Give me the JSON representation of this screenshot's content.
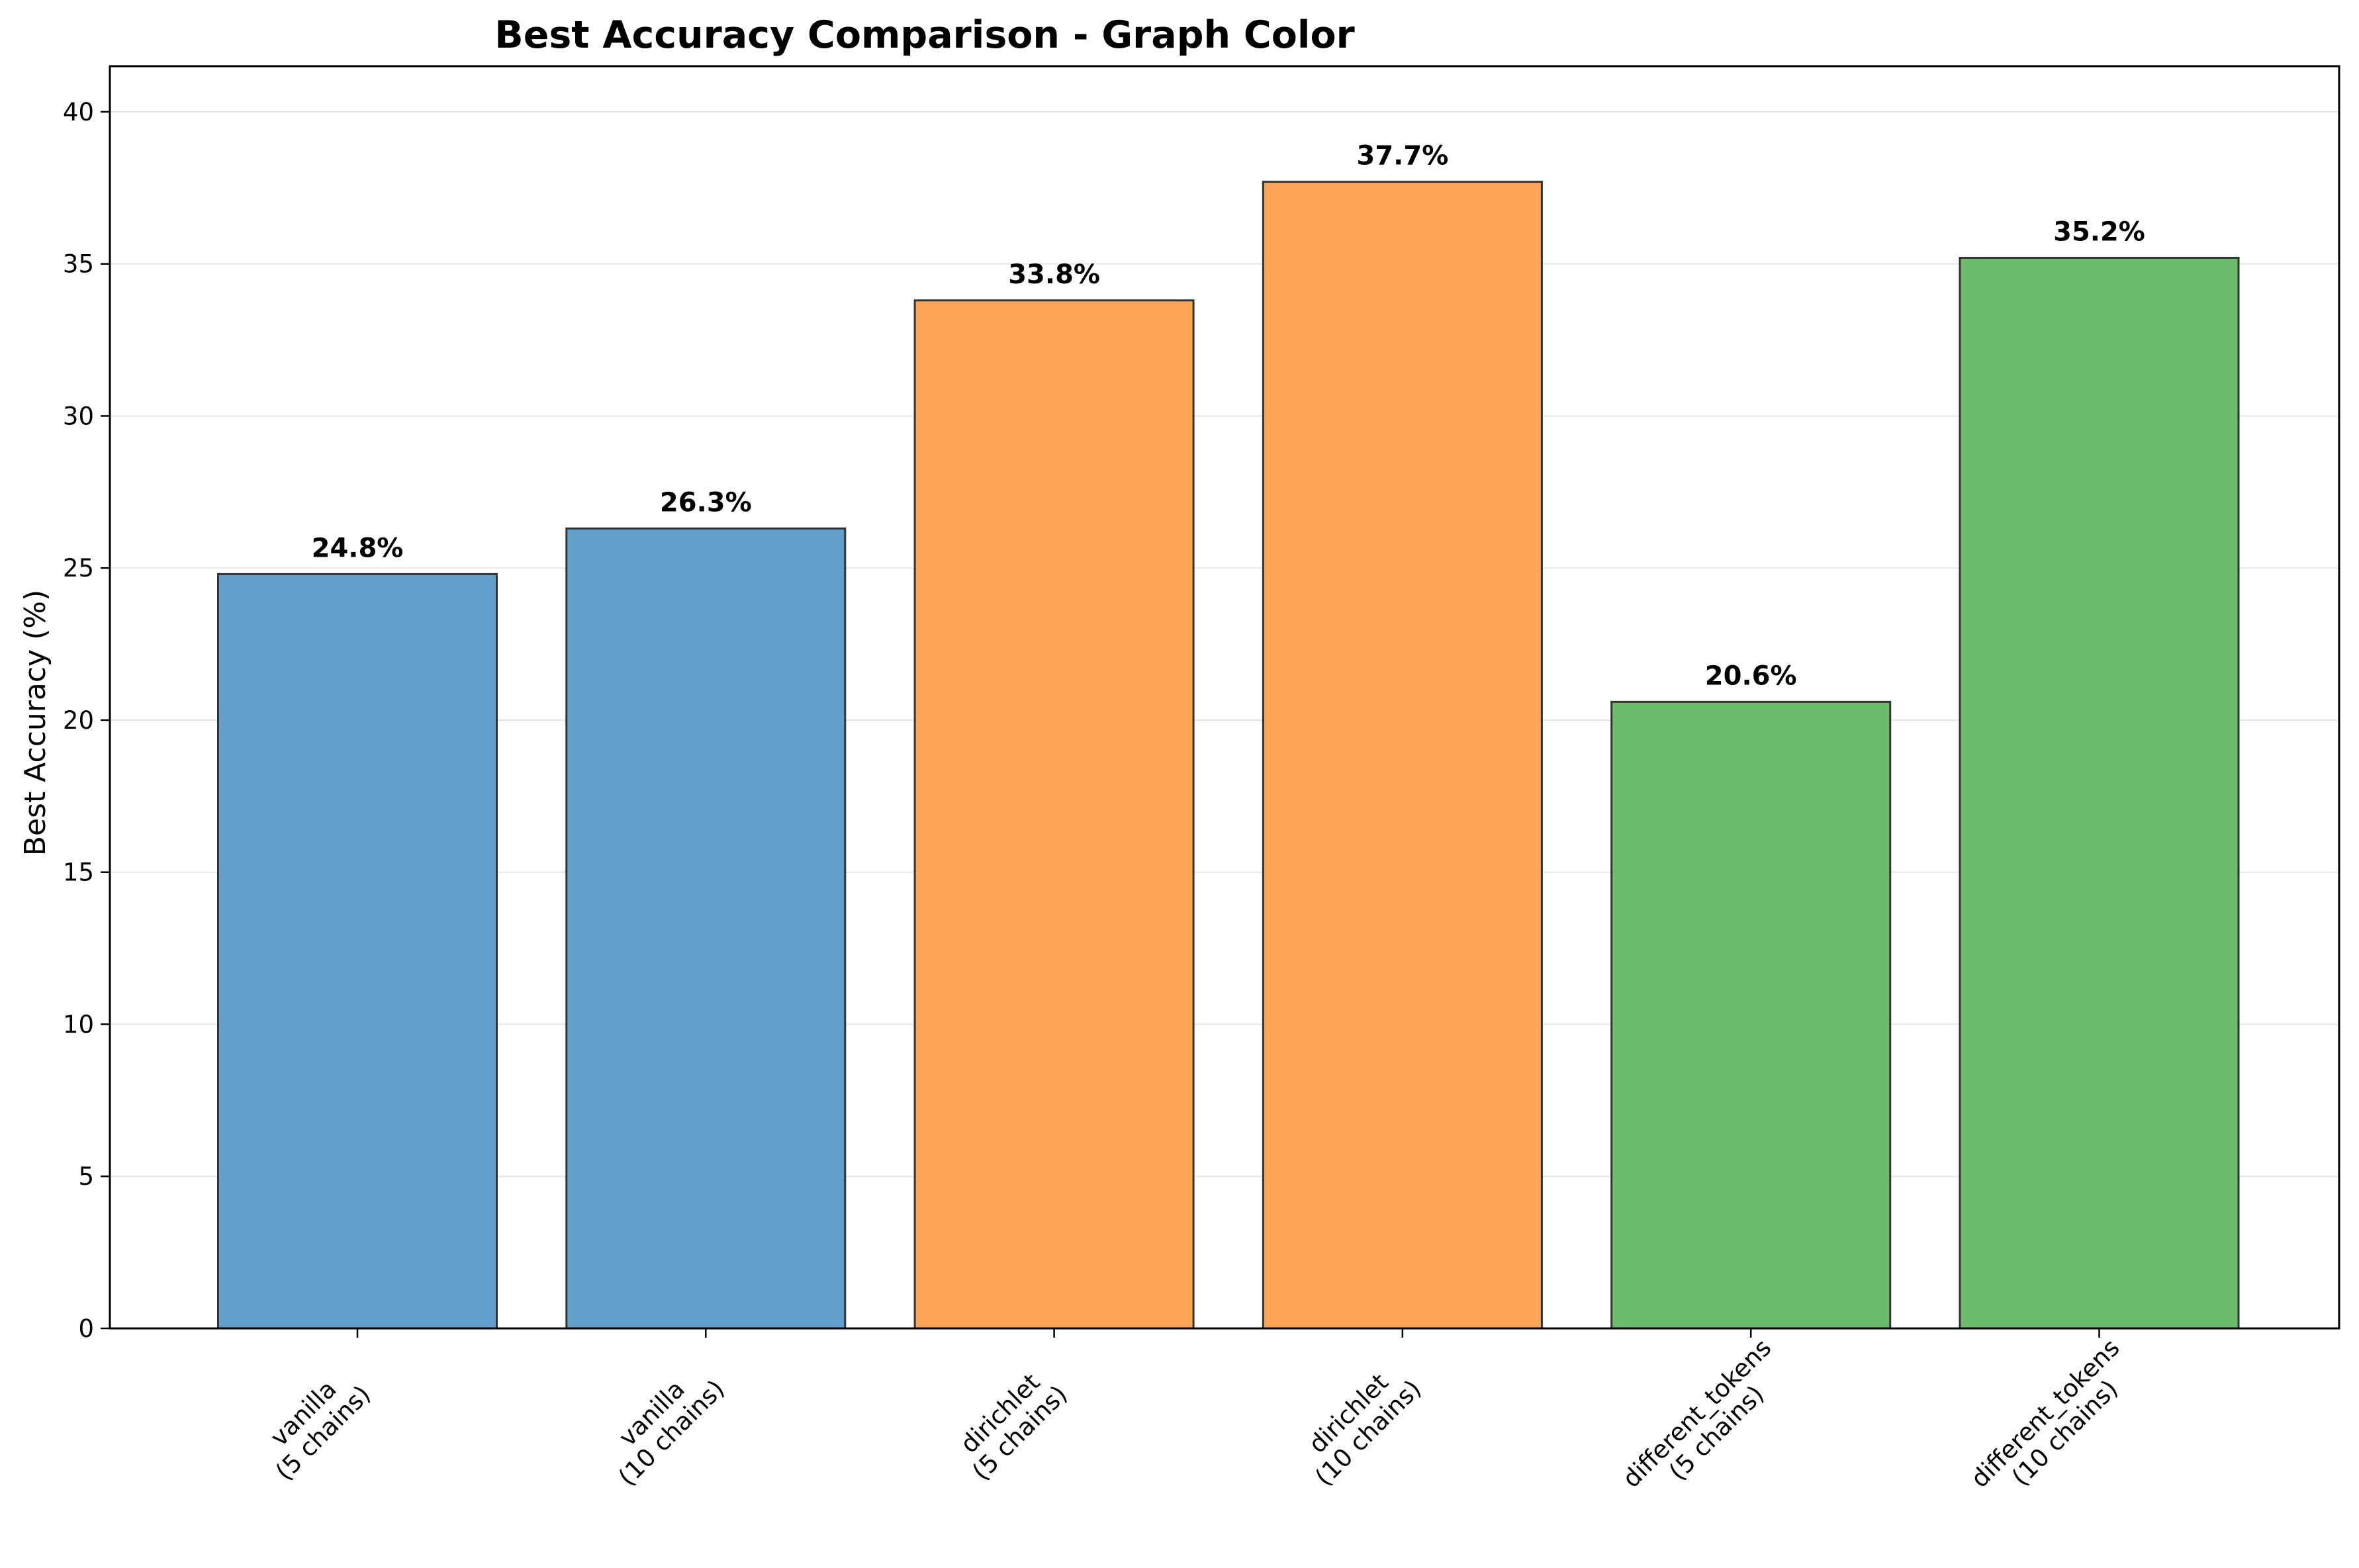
{
  "chart_data": {
    "type": "bar",
    "title": "Best Accuracy Comparison - Graph Color",
    "xlabel": "",
    "ylabel": "Best Accuracy (%)",
    "ylim": [
      0,
      41.5
    ],
    "yticks": [
      0,
      5,
      10,
      15,
      20,
      25,
      30,
      35,
      40
    ],
    "grid": "y",
    "categories": [
      "vanilla\n(5 chains)",
      "vanilla\n(10 chains)",
      "dirichlet\n(5 chains)",
      "dirichlet\n(10 chains)",
      "different_tokens\n(5 chains)",
      "different_tokens\n(10 chains)"
    ],
    "values": [
      24.8,
      26.3,
      33.8,
      37.7,
      20.6,
      35.2
    ],
    "value_labels": [
      "24.8%",
      "26.3%",
      "33.8%",
      "37.7%",
      "20.6%",
      "35.2%"
    ],
    "colors": [
      "#62a0cb",
      "#62a0cb",
      "#ffa556",
      "#ffa556",
      "#6bbc6b",
      "#6bbc6b"
    ],
    "edge_color": "#333333",
    "tick_label_rotation": 45
  }
}
